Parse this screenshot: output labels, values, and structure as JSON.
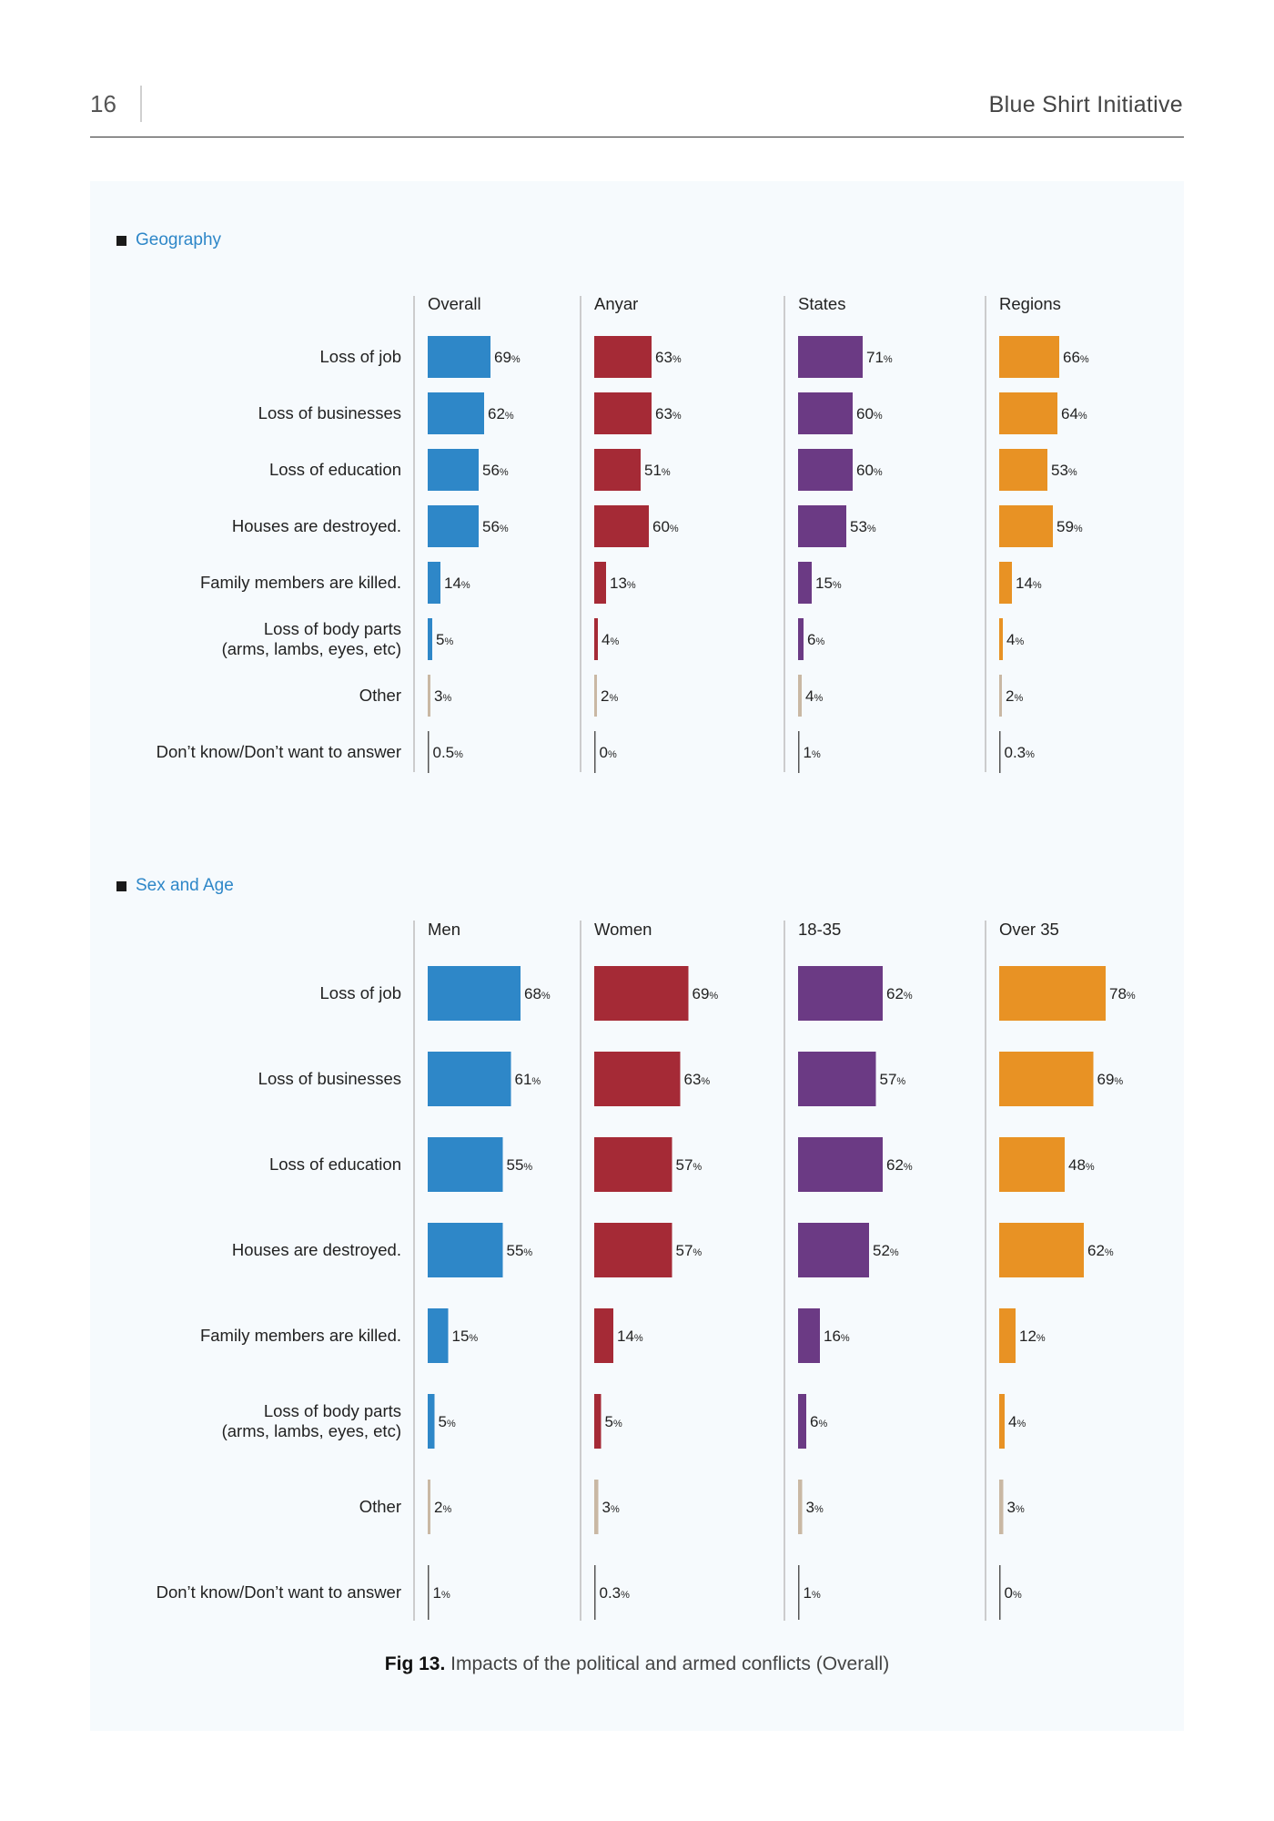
{
  "header": {
    "page_number": "16",
    "report_title": "Blue Shirt Initiative"
  },
  "colors": {
    "blue": "#2e87c8",
    "red": "#a52a36",
    "purple": "#6b3a84",
    "orange": "#e89224",
    "other_bar": "#c9b8a4",
    "dk_bar": "#555555"
  },
  "caption": {
    "label": "Fig 13.",
    "text": "Impacts of the political and armed conflicts (Overall)"
  },
  "chart_data": [
    {
      "type": "bar",
      "section_title": "Geography",
      "categories": [
        "Loss of job",
        "Loss of businesses",
        "Loss of education",
        "Houses are destroyed.",
        "Family members are killed.",
        "Loss of body parts\n(arms, lambs, eyes, etc)",
        "Other",
        "Don’t know/Don’t want to answer"
      ],
      "series": [
        {
          "name": "Overall",
          "color": "#2e87c8",
          "values": [
            69,
            62,
            56,
            56,
            14,
            5,
            3,
            0.5
          ],
          "labels": [
            "69",
            "62",
            "56",
            "56",
            "14",
            "5",
            "3",
            "0.5"
          ]
        },
        {
          "name": "Anyar",
          "color": "#a52a36",
          "values": [
            63,
            63,
            51,
            60,
            13,
            4,
            2,
            0
          ],
          "labels": [
            "63",
            "63",
            "51",
            "60",
            "13",
            "4",
            "2",
            "0"
          ]
        },
        {
          "name": "States",
          "color": "#6b3a84",
          "values": [
            71,
            60,
            60,
            53,
            15,
            6,
            4,
            1
          ],
          "labels": [
            "71",
            "60",
            "60",
            "53",
            "15",
            "6",
            "4",
            "1"
          ]
        },
        {
          "name": "Regions",
          "color": "#e89224",
          "values": [
            66,
            64,
            53,
            59,
            14,
            4,
            2,
            0.3
          ],
          "labels": [
            "66",
            "64",
            "53",
            "59",
            "14",
            "4",
            "2",
            "0.3"
          ]
        }
      ],
      "value_suffix": "%",
      "xlim": [
        0,
        100
      ]
    },
    {
      "type": "bar",
      "section_title": "Sex and Age",
      "categories": [
        "Loss of job",
        "Loss of businesses",
        "Loss of education",
        "Houses are destroyed.",
        "Family members are killed.",
        "Loss of body parts\n(arms, lambs, eyes, etc)",
        "Other",
        "Don’t know/Don’t want to answer"
      ],
      "series": [
        {
          "name": "Men",
          "color": "#2e87c8",
          "values": [
            68,
            61,
            55,
            55,
            15,
            5,
            2,
            1
          ],
          "labels": [
            "68",
            "61",
            "55",
            "55",
            "15",
            "5",
            "2",
            "1"
          ]
        },
        {
          "name": "Women",
          "color": "#a52a36",
          "values": [
            69,
            63,
            57,
            57,
            14,
            5,
            3,
            0.3
          ],
          "labels": [
            "69",
            "63",
            "57",
            "57",
            "14",
            "5",
            "3",
            "0.3"
          ]
        },
        {
          "name": "18-35",
          "color": "#6b3a84",
          "values": [
            62,
            57,
            62,
            52,
            16,
            6,
            3,
            1
          ],
          "labels": [
            "62",
            "57",
            "62",
            "52",
            "16",
            "6",
            "3",
            "1"
          ]
        },
        {
          "name": "Over 35",
          "color": "#e89224",
          "values": [
            78,
            69,
            48,
            62,
            12,
            4,
            3,
            0
          ],
          "labels": [
            "78",
            "69",
            "48",
            "62",
            "12",
            "4",
            "3",
            "0"
          ]
        }
      ],
      "value_suffix": "%",
      "xlim": [
        0,
        100
      ]
    }
  ]
}
